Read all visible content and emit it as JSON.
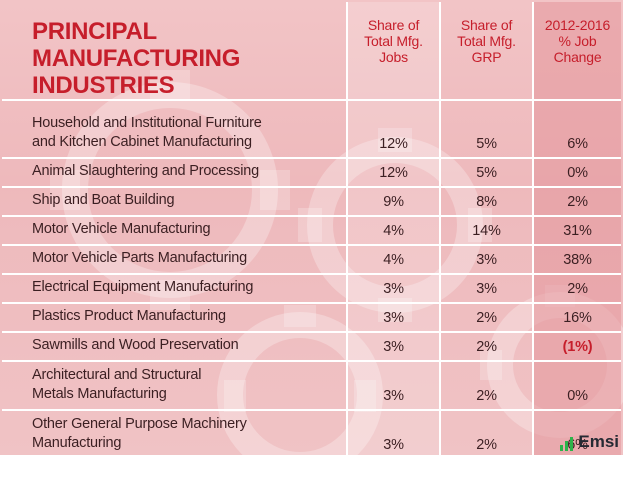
{
  "table": {
    "title_line1": "PRINCIPAL MANUFACTURING",
    "title_line2": "INDUSTRIES",
    "col_jobs": [
      "Share of",
      "Total Mfg.",
      "Jobs"
    ],
    "col_grp": [
      "Share of",
      "Total Mfg.",
      "GRP"
    ],
    "col_change": [
      "2012-2016",
      "% Job",
      "Change"
    ],
    "rows": [
      {
        "name": [
          "Household and Institutional Furniture",
          "and Kitchen Cabinet Manufacturing"
        ],
        "jobs": "12%",
        "grp": "5%",
        "change": "6%"
      },
      {
        "name": [
          "Animal Slaughtering and Processing"
        ],
        "jobs": "12%",
        "grp": "5%",
        "change": "0%"
      },
      {
        "name": [
          "Ship and Boat Building"
        ],
        "jobs": "9%",
        "grp": "8%",
        "change": "2%"
      },
      {
        "name": [
          "Motor Vehicle Manufacturing"
        ],
        "jobs": "4%",
        "grp": "14%",
        "change": "31%"
      },
      {
        "name": [
          "Motor Vehicle Parts Manufacturing"
        ],
        "jobs": "4%",
        "grp": "3%",
        "change": "38%"
      },
      {
        "name": [
          "Electrical Equipment Manufacturing"
        ],
        "jobs": "3%",
        "grp": "3%",
        "change": "2%"
      },
      {
        "name": [
          "Plastics Product Manufacturing"
        ],
        "jobs": "3%",
        "grp": "2%",
        "change": "16%"
      },
      {
        "name": [
          "Sawmills and Wood Preservation"
        ],
        "jobs": "3%",
        "grp": "2%",
        "change": "(1%)"
      },
      {
        "name": [
          "Architectural and Structural",
          "Metals Manufacturing"
        ],
        "jobs": "3%",
        "grp": "2%",
        "change": "0%"
      },
      {
        "name": [
          "Other General Purpose Machinery",
          "Manufacturing"
        ],
        "jobs": "3%",
        "grp": "2%",
        "change": "6%"
      }
    ]
  },
  "colors": {
    "accent": "#c61e2b",
    "negative": "#c61e2b",
    "logo_green": "#2db34a"
  },
  "brand": {
    "logo_text": "Emsi",
    "logo_icon": "bar-chart-icon"
  }
}
